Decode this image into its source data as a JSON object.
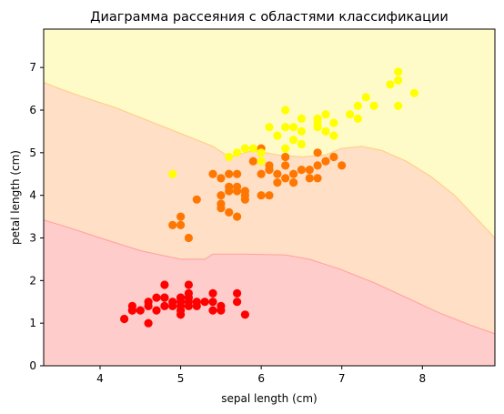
{
  "chart_data": {
    "type": "scatter",
    "title": "Диаграмма рассеяния с областями классификации",
    "xlabel": "sepal length (cm)",
    "ylabel": "petal length (cm)",
    "xlim": [
      3.3,
      8.9
    ],
    "ylim": [
      0,
      7.9
    ],
    "xticks": [
      4,
      5,
      6,
      7,
      8
    ],
    "yticks": [
      0,
      1,
      2,
      3,
      4,
      5,
      6,
      7
    ],
    "grid": false,
    "legend": "none",
    "region_colors": [
      "#ffcccc",
      "#ffdfc6",
      "#fffbc8"
    ],
    "region_edge_colors": [
      "#ffa8a0",
      "#ffd08a"
    ],
    "boundaries": {
      "lower": [
        [
          3.3,
          3.42
        ],
        [
          3.6,
          3.25
        ],
        [
          4.0,
          3.0
        ],
        [
          4.5,
          2.7
        ],
        [
          5.0,
          2.5
        ],
        [
          5.3,
          2.5
        ],
        [
          5.4,
          2.62
        ],
        [
          5.8,
          2.62
        ],
        [
          6.3,
          2.6
        ],
        [
          6.6,
          2.5
        ],
        [
          7.0,
          2.25
        ],
        [
          7.4,
          1.95
        ],
        [
          7.8,
          1.6
        ],
        [
          8.2,
          1.25
        ],
        [
          8.6,
          0.95
        ],
        [
          8.9,
          0.75
        ]
      ],
      "upper": [
        [
          3.3,
          6.65
        ],
        [
          3.5,
          6.5
        ],
        [
          3.8,
          6.3
        ],
        [
          4.2,
          6.05
        ],
        [
          4.6,
          5.75
        ],
        [
          5.0,
          5.45
        ],
        [
          5.4,
          5.15
        ],
        [
          5.6,
          4.9
        ],
        [
          5.7,
          4.95
        ],
        [
          5.9,
          5.05
        ],
        [
          6.2,
          4.95
        ],
        [
          6.5,
          4.9
        ],
        [
          6.8,
          4.95
        ],
        [
          7.0,
          5.1
        ],
        [
          7.25,
          5.15
        ],
        [
          7.5,
          5.05
        ],
        [
          7.8,
          4.8
        ],
        [
          8.1,
          4.45
        ],
        [
          8.4,
          4.0
        ],
        [
          8.7,
          3.4
        ],
        [
          8.9,
          3.0
        ]
      ]
    },
    "series": [
      {
        "color": "#ff0000",
        "points": [
          [
            4.3,
            1.1
          ],
          [
            4.4,
            1.3
          ],
          [
            4.4,
            1.4
          ],
          [
            4.4,
            1.3
          ],
          [
            4.5,
            1.3
          ],
          [
            4.6,
            1.4
          ],
          [
            4.6,
            1.0
          ],
          [
            4.6,
            1.5
          ],
          [
            4.7,
            1.3
          ],
          [
            4.7,
            1.6
          ],
          [
            4.8,
            1.6
          ],
          [
            4.8,
            1.4
          ],
          [
            4.8,
            1.9
          ],
          [
            4.8,
            1.6
          ],
          [
            4.9,
            1.4
          ],
          [
            4.9,
            1.5
          ],
          [
            5.0,
            1.4
          ],
          [
            5.0,
            1.5
          ],
          [
            5.0,
            1.6
          ],
          [
            5.0,
            1.2
          ],
          [
            5.0,
            1.3
          ],
          [
            5.0,
            1.6
          ],
          [
            5.1,
            1.4
          ],
          [
            5.1,
            1.5
          ],
          [
            5.1,
            1.7
          ],
          [
            5.1,
            1.9
          ],
          [
            5.1,
            1.6
          ],
          [
            5.2,
            1.5
          ],
          [
            5.2,
            1.4
          ],
          [
            5.3,
            1.5
          ],
          [
            5.4,
            1.7
          ],
          [
            5.4,
            1.5
          ],
          [
            5.4,
            1.3
          ],
          [
            5.5,
            1.4
          ],
          [
            5.5,
            1.3
          ],
          [
            5.7,
            1.5
          ],
          [
            5.7,
            1.7
          ],
          [
            5.8,
            1.2
          ]
        ]
      },
      {
        "color": "#ff7700",
        "points": [
          [
            4.9,
            3.3
          ],
          [
            5.0,
            3.5
          ],
          [
            5.0,
            3.3
          ],
          [
            5.1,
            3.0
          ],
          [
            5.2,
            3.9
          ],
          [
            5.4,
            4.5
          ],
          [
            5.5,
            4.0
          ],
          [
            5.5,
            3.7
          ],
          [
            5.5,
            4.4
          ],
          [
            5.5,
            3.8
          ],
          [
            5.6,
            4.5
          ],
          [
            5.6,
            3.6
          ],
          [
            5.6,
            4.2
          ],
          [
            5.6,
            4.1
          ],
          [
            5.7,
            4.5
          ],
          [
            5.7,
            3.5
          ],
          [
            5.7,
            4.2
          ],
          [
            5.7,
            4.1
          ],
          [
            5.8,
            4.1
          ],
          [
            5.8,
            4.0
          ],
          [
            5.8,
            3.9
          ],
          [
            5.9,
            4.8
          ],
          [
            6.0,
            4.5
          ],
          [
            6.0,
            4.0
          ],
          [
            6.0,
            5.1
          ],
          [
            6.1,
            4.7
          ],
          [
            6.1,
            4.0
          ],
          [
            6.1,
            4.6
          ],
          [
            6.2,
            4.3
          ],
          [
            6.2,
            4.5
          ],
          [
            6.3,
            4.7
          ],
          [
            6.3,
            4.9
          ],
          [
            6.3,
            4.4
          ],
          [
            6.4,
            4.5
          ],
          [
            6.4,
            4.3
          ],
          [
            6.5,
            4.6
          ],
          [
            6.6,
            4.6
          ],
          [
            6.6,
            4.4
          ],
          [
            6.7,
            4.7
          ],
          [
            6.7,
            4.4
          ],
          [
            6.7,
            5.0
          ],
          [
            6.8,
            4.8
          ],
          [
            6.9,
            4.9
          ],
          [
            7.0,
            4.7
          ]
        ]
      },
      {
        "color": "#ffff00",
        "points": [
          [
            4.9,
            4.5
          ],
          [
            5.6,
            4.9
          ],
          [
            5.7,
            5.0
          ],
          [
            5.8,
            5.1
          ],
          [
            5.9,
            5.1
          ],
          [
            6.0,
            4.8
          ],
          [
            6.0,
            5.0
          ],
          [
            6.1,
            5.6
          ],
          [
            6.2,
            5.4
          ],
          [
            6.3,
            6.0
          ],
          [
            6.3,
            5.6
          ],
          [
            6.3,
            5.1
          ],
          [
            6.4,
            5.6
          ],
          [
            6.4,
            5.3
          ],
          [
            6.5,
            5.8
          ],
          [
            6.5,
            5.5
          ],
          [
            6.5,
            5.2
          ],
          [
            6.7,
            5.8
          ],
          [
            6.7,
            5.6
          ],
          [
            6.7,
            5.7
          ],
          [
            6.8,
            5.9
          ],
          [
            6.8,
            5.5
          ],
          [
            6.9,
            5.7
          ],
          [
            6.9,
            5.4
          ],
          [
            7.1,
            5.9
          ],
          [
            7.2,
            6.1
          ],
          [
            7.2,
            5.8
          ],
          [
            7.3,
            6.3
          ],
          [
            7.4,
            6.1
          ],
          [
            7.6,
            6.6
          ],
          [
            7.7,
            6.7
          ],
          [
            7.7,
            6.9
          ],
          [
            7.7,
            6.1
          ],
          [
            7.9,
            6.4
          ]
        ]
      }
    ]
  }
}
